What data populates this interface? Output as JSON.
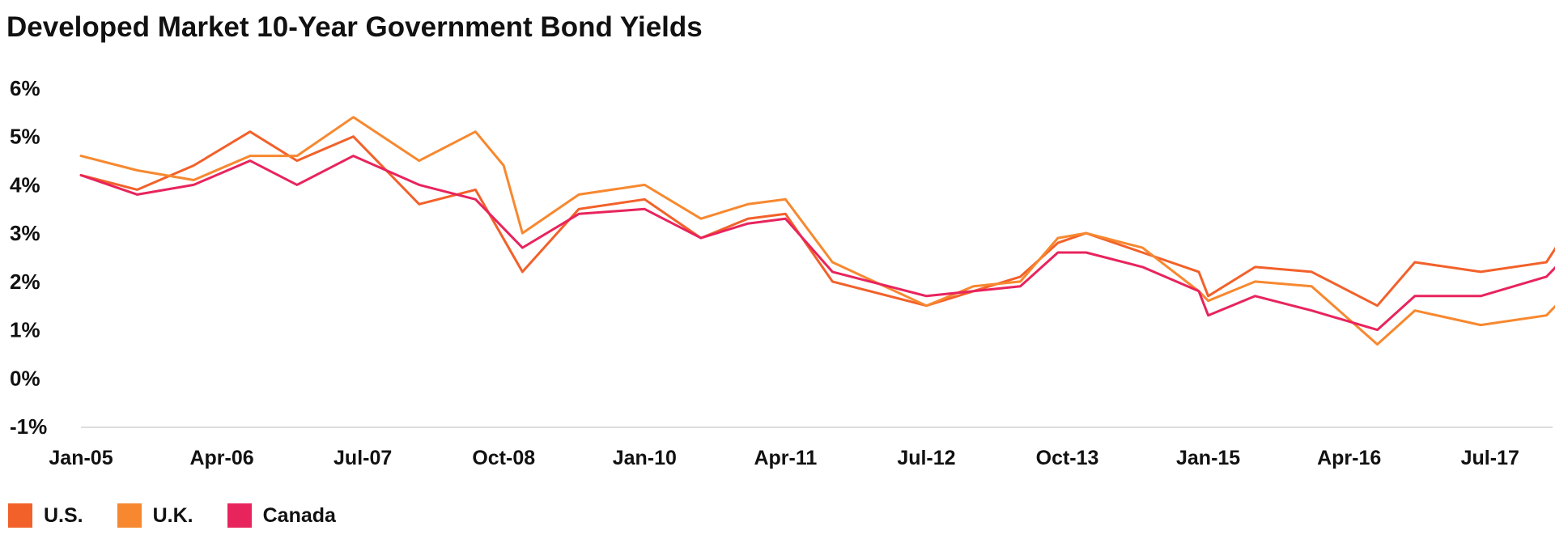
{
  "chart_data": {
    "type": "line",
    "title": "Developed Market 10-Year Government Bond Yields",
    "xlabel": "",
    "ylabel": "",
    "ylim": [
      -1,
      6
    ],
    "y_ticks": [
      "6%",
      "5%",
      "4%",
      "3%",
      "2%",
      "1%",
      "0%",
      "-1%"
    ],
    "x_ticks": [
      "Jan-05",
      "Apr-06",
      "Jul-07",
      "Oct-08",
      "Jan-10",
      "Apr-11",
      "Jul-12",
      "Oct-13",
      "Jan-15",
      "Apr-16",
      "Jul-17"
    ],
    "x_range": [
      "Jan-05",
      "Feb-18"
    ],
    "grid": false,
    "legend_position": "bottom-left",
    "series": [
      {
        "name": "U.S.",
        "color": "#F2612A",
        "points": [
          [
            "Jan-05",
            4.2
          ],
          [
            "Jul-05",
            3.9
          ],
          [
            "Jan-06",
            4.4
          ],
          [
            "Jul-06",
            5.1
          ],
          [
            "Dec-06",
            4.5
          ],
          [
            "Jun-07",
            5.0
          ],
          [
            "Jan-08",
            3.6
          ],
          [
            "Jul-08",
            3.9
          ],
          [
            "Dec-08",
            2.2
          ],
          [
            "Jun-09",
            3.5
          ],
          [
            "Jan-10",
            3.7
          ],
          [
            "Jul-10",
            2.9
          ],
          [
            "Dec-10",
            3.3
          ],
          [
            "Apr-11",
            3.4
          ],
          [
            "Sep-11",
            2.0
          ],
          [
            "Jul-12",
            1.5
          ],
          [
            "Dec-12",
            1.8
          ],
          [
            "May-13",
            2.1
          ],
          [
            "Sep-13",
            2.8
          ],
          [
            "Dec-13",
            3.0
          ],
          [
            "Jun-14",
            2.6
          ],
          [
            "Dec-14",
            2.2
          ],
          [
            "Jan-15",
            1.7
          ],
          [
            "Jun-15",
            2.3
          ],
          [
            "Dec-15",
            2.2
          ],
          [
            "Jul-16",
            1.5
          ],
          [
            "Nov-16",
            2.4
          ],
          [
            "Jun-17",
            2.2
          ],
          [
            "Jan-18",
            2.4
          ],
          [
            "Feb-18",
            2.7
          ]
        ]
      },
      {
        "name": "U.K.",
        "color": "#F7882F",
        "points": [
          [
            "Jan-05",
            4.6
          ],
          [
            "Jul-05",
            4.3
          ],
          [
            "Jan-06",
            4.1
          ],
          [
            "Jul-06",
            4.6
          ],
          [
            "Dec-06",
            4.6
          ],
          [
            "Jun-07",
            5.4
          ],
          [
            "Jan-08",
            4.5
          ],
          [
            "Jul-08",
            5.1
          ],
          [
            "Oct-08",
            4.4
          ],
          [
            "Dec-08",
            3.0
          ],
          [
            "Jun-09",
            3.8
          ],
          [
            "Jan-10",
            4.0
          ],
          [
            "Jul-10",
            3.3
          ],
          [
            "Dec-10",
            3.6
          ],
          [
            "Apr-11",
            3.7
          ],
          [
            "Sep-11",
            2.4
          ],
          [
            "Jul-12",
            1.5
          ],
          [
            "Dec-12",
            1.9
          ],
          [
            "May-13",
            2.0
          ],
          [
            "Sep-13",
            2.9
          ],
          [
            "Dec-13",
            3.0
          ],
          [
            "Jun-14",
            2.7
          ],
          [
            "Dec-14",
            1.8
          ],
          [
            "Jan-15",
            1.6
          ],
          [
            "Jun-15",
            2.0
          ],
          [
            "Dec-15",
            1.9
          ],
          [
            "Jul-16",
            0.7
          ],
          [
            "Nov-16",
            1.4
          ],
          [
            "Jun-17",
            1.1
          ],
          [
            "Jan-18",
            1.3
          ],
          [
            "Feb-18",
            1.5
          ]
        ]
      },
      {
        "name": "Canada",
        "color": "#E8245D",
        "points": [
          [
            "Jan-05",
            4.2
          ],
          [
            "Jul-05",
            3.8
          ],
          [
            "Jan-06",
            4.0
          ],
          [
            "Jul-06",
            4.5
          ],
          [
            "Dec-06",
            4.0
          ],
          [
            "Jun-07",
            4.6
          ],
          [
            "Jan-08",
            4.0
          ],
          [
            "Jul-08",
            3.7
          ],
          [
            "Dec-08",
            2.7
          ],
          [
            "Jun-09",
            3.4
          ],
          [
            "Jan-10",
            3.5
          ],
          [
            "Jul-10",
            2.9
          ],
          [
            "Dec-10",
            3.2
          ],
          [
            "Apr-11",
            3.3
          ],
          [
            "Sep-11",
            2.2
          ],
          [
            "Jul-12",
            1.7
          ],
          [
            "Dec-12",
            1.8
          ],
          [
            "May-13",
            1.9
          ],
          [
            "Sep-13",
            2.6
          ],
          [
            "Dec-13",
            2.6
          ],
          [
            "Jun-14",
            2.3
          ],
          [
            "Dec-14",
            1.8
          ],
          [
            "Jan-15",
            1.3
          ],
          [
            "Jun-15",
            1.7
          ],
          [
            "Dec-15",
            1.4
          ],
          [
            "Jul-16",
            1.0
          ],
          [
            "Nov-16",
            1.7
          ],
          [
            "Jun-17",
            1.7
          ],
          [
            "Jan-18",
            2.1
          ],
          [
            "Feb-18",
            2.3
          ]
        ]
      }
    ]
  }
}
